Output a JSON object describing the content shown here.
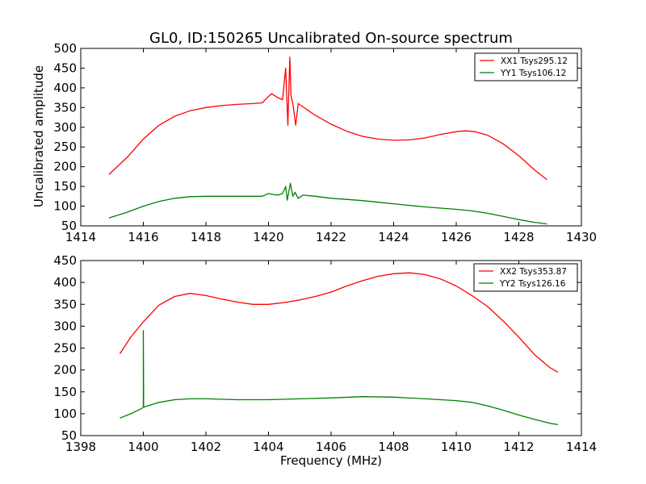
{
  "chart_data": [
    {
      "type": "line",
      "title": "GL0, ID:150265 Uncalibrated On-source spectrum",
      "xlabel": "",
      "ylabel": "Uncalibrated amplitude",
      "xlim": [
        1414,
        1430
      ],
      "ylim": [
        50,
        500
      ],
      "xticks": [
        1414,
        1416,
        1418,
        1420,
        1422,
        1424,
        1426,
        1428,
        1430
      ],
      "yticks": [
        50,
        100,
        150,
        200,
        250,
        300,
        350,
        400,
        450,
        500
      ],
      "legend_position": "top-right",
      "series": [
        {
          "name": "XX1 Tsys295.12",
          "color": "#ff0000",
          "x": [
            1414.9,
            1415.5,
            1416,
            1416.5,
            1417,
            1417.5,
            1418,
            1418.5,
            1419,
            1419.5,
            1419.8,
            1420.0,
            1420.1,
            1420.3,
            1420.45,
            1420.55,
            1420.62,
            1420.68,
            1420.72,
            1420.78,
            1420.87,
            1420.95,
            1421.1,
            1421.5,
            1422,
            1422.5,
            1423,
            1423.5,
            1424,
            1424.5,
            1425,
            1425.5,
            1426,
            1426.3,
            1426.6,
            1427,
            1427.5,
            1428,
            1428.5,
            1428.9
          ],
          "values": [
            180,
            225,
            270,
            305,
            328,
            342,
            350,
            355,
            358,
            360,
            362,
            378,
            385,
            375,
            370,
            450,
            305,
            478,
            380,
            360,
            305,
            360,
            352,
            330,
            308,
            290,
            277,
            270,
            267,
            268,
            273,
            282,
            289,
            291,
            289,
            280,
            258,
            228,
            192,
            167
          ]
        },
        {
          "name": "YY1 Tsys106.12",
          "color": "#008000",
          "x": [
            1414.9,
            1415.5,
            1416,
            1416.5,
            1417,
            1417.5,
            1418,
            1418.5,
            1419,
            1419.5,
            1419.8,
            1420.0,
            1420.1,
            1420.3,
            1420.45,
            1420.55,
            1420.6,
            1420.7,
            1420.78,
            1420.85,
            1420.95,
            1421.1,
            1421.5,
            1422,
            1422.5,
            1423,
            1423.5,
            1424,
            1424.5,
            1425,
            1425.5,
            1426,
            1426.5,
            1427,
            1427.5,
            1428,
            1428.5,
            1428.9
          ],
          "values": [
            70,
            85,
            100,
            112,
            120,
            124,
            125,
            125,
            125,
            125,
            125,
            132,
            130,
            128,
            132,
            150,
            115,
            158,
            125,
            135,
            120,
            128,
            125,
            120,
            117,
            114,
            110,
            106,
            102,
            98,
            95,
            92,
            88,
            82,
            74,
            66,
            59,
            55
          ]
        }
      ]
    },
    {
      "type": "line",
      "title": "",
      "xlabel": "Frequency (MHz)",
      "ylabel": "",
      "xlim": [
        1398,
        1414
      ],
      "ylim": [
        50,
        450
      ],
      "xticks": [
        1398,
        1400,
        1402,
        1404,
        1406,
        1408,
        1410,
        1412,
        1414
      ],
      "yticks": [
        50,
        100,
        150,
        200,
        250,
        300,
        350,
        400,
        450
      ],
      "legend_position": "top-right",
      "series": [
        {
          "name": "XX2 Tsys353.87",
          "color": "#ff0000",
          "x": [
            1399.25,
            1399.6,
            1400,
            1400.5,
            1401,
            1401.5,
            1402,
            1402.5,
            1403,
            1403.5,
            1404,
            1404.5,
            1405,
            1405.5,
            1406,
            1406.5,
            1407,
            1407.5,
            1408,
            1408.5,
            1409,
            1409.5,
            1410,
            1410.5,
            1411,
            1411.5,
            1412,
            1412.5,
            1413,
            1413.25
          ],
          "values": [
            237,
            275,
            310,
            348,
            368,
            375,
            370,
            362,
            355,
            350,
            350,
            354,
            360,
            368,
            378,
            392,
            404,
            414,
            420,
            422,
            418,
            408,
            392,
            370,
            345,
            312,
            275,
            235,
            205,
            195
          ]
        },
        {
          "name": "YY2 Tsys126.16",
          "color": "#008000",
          "x": [
            1399.25,
            1399.6,
            1399.95,
            1400.0,
            1400.0,
            1400.01,
            1400.5,
            1401,
            1401.5,
            1402,
            1403,
            1404,
            1405,
            1406,
            1407,
            1408,
            1409,
            1410,
            1410.5,
            1411,
            1411.5,
            1412,
            1412.5,
            1413,
            1413.25
          ],
          "values": [
            90,
            100,
            112,
            115,
            290,
            115,
            126,
            132,
            134,
            134,
            132,
            132,
            134,
            136,
            139,
            138,
            134,
            130,
            126,
            118,
            108,
            97,
            87,
            78,
            75
          ]
        }
      ]
    }
  ]
}
